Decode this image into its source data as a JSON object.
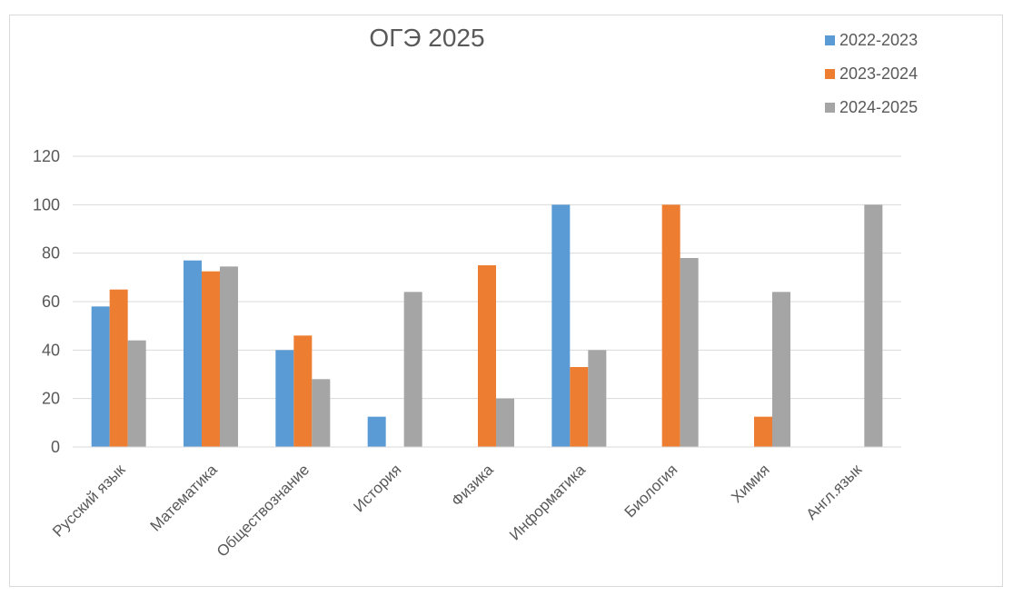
{
  "chart_data": {
    "type": "bar",
    "title": "ОГЭ 2025",
    "categories": [
      "Русский язык",
      "Математика",
      "Обществознание",
      "История",
      "Физика",
      "Информатика",
      "Биология",
      "Химия",
      "Англ.язык"
    ],
    "series": [
      {
        "name": "2022-2023",
        "color": "#5b9bd5",
        "values": [
          58,
          77,
          40,
          12.5,
          0,
          100,
          0,
          0,
          0
        ]
      },
      {
        "name": "2023-2024",
        "color": "#ed7d31",
        "values": [
          65,
          72.5,
          46,
          0,
          75,
          33,
          100,
          12.5,
          0
        ]
      },
      {
        "name": "2024-2025",
        "color": "#a5a5a5",
        "values": [
          44,
          74.5,
          28,
          64,
          20,
          40,
          78,
          64,
          100
        ]
      }
    ],
    "ylim": [
      0,
      120
    ],
    "yticks": [
      "0",
      "20",
      "40",
      "60",
      "80",
      "100",
      "120"
    ],
    "grid": true,
    "legend_position": "top-right"
  }
}
